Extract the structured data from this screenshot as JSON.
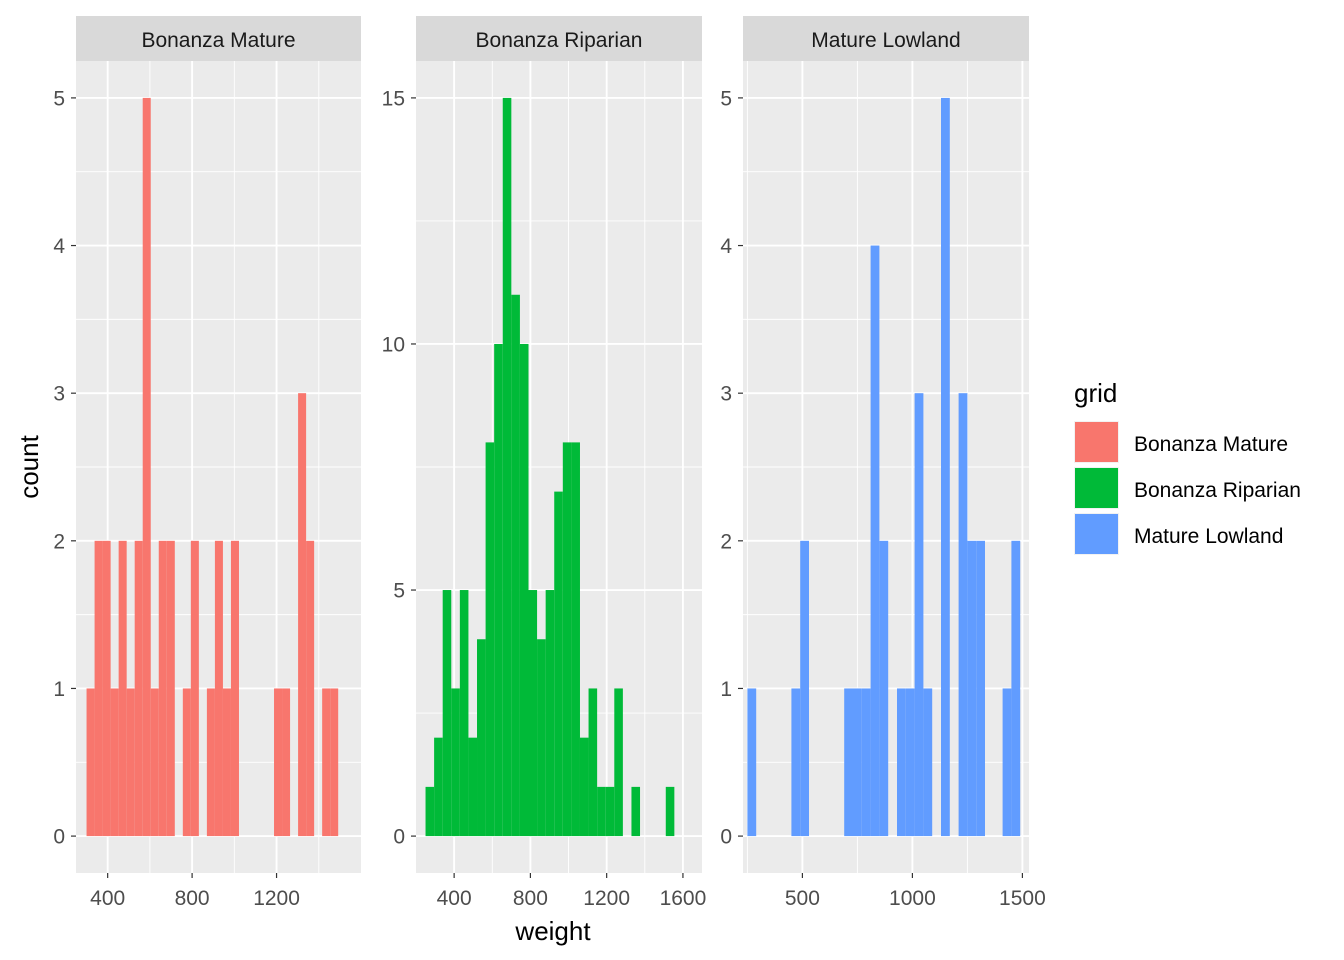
{
  "chart_data": {
    "type": "bar",
    "subtype": "faceted-histogram",
    "xlabel": "weight",
    "ylabel": "count",
    "legend": {
      "title": "grid",
      "position": "right"
    },
    "grid": true,
    "bin_width": 38,
    "colors": {
      "Bonanza Mature": "#F8766D",
      "Bonanza Riparian": "#00BA38",
      "Mature Lowland": "#619CFF"
    },
    "panels": [
      {
        "strip": "Bonanza Mature",
        "xlim": [
          250,
          1600
        ],
        "ylim": [
          -0.25,
          5.25
        ],
        "xticks": [
          400,
          800,
          1200
        ],
        "yticks": [
          0,
          1,
          2,
          3,
          4,
          5
        ],
        "bins": [
          {
            "x0": 300,
            "x1": 338,
            "count": 1
          },
          {
            "x0": 338,
            "x1": 376,
            "count": 2
          },
          {
            "x0": 376,
            "x1": 414,
            "count": 2
          },
          {
            "x0": 414,
            "x1": 452,
            "count": 1
          },
          {
            "x0": 452,
            "x1": 490,
            "count": 2
          },
          {
            "x0": 490,
            "x1": 528,
            "count": 1
          },
          {
            "x0": 528,
            "x1": 566,
            "count": 2
          },
          {
            "x0": 566,
            "x1": 604,
            "count": 5
          },
          {
            "x0": 604,
            "x1": 642,
            "count": 1
          },
          {
            "x0": 642,
            "x1": 680,
            "count": 2
          },
          {
            "x0": 680,
            "x1": 718,
            "count": 2
          },
          {
            "x0": 756,
            "x1": 794,
            "count": 1
          },
          {
            "x0": 794,
            "x1": 832,
            "count": 2
          },
          {
            "x0": 870,
            "x1": 908,
            "count": 1
          },
          {
            "x0": 908,
            "x1": 946,
            "count": 2
          },
          {
            "x0": 946,
            "x1": 984,
            "count": 1
          },
          {
            "x0": 984,
            "x1": 1022,
            "count": 2
          },
          {
            "x0": 1188,
            "x1": 1226,
            "count": 1
          },
          {
            "x0": 1226,
            "x1": 1264,
            "count": 1
          },
          {
            "x0": 1302,
            "x1": 1340,
            "count": 3
          },
          {
            "x0": 1340,
            "x1": 1378,
            "count": 2
          },
          {
            "x0": 1416,
            "x1": 1454,
            "count": 1
          },
          {
            "x0": 1454,
            "x1": 1492,
            "count": 1
          }
        ]
      },
      {
        "strip": "Bonanza Riparian",
        "xlim": [
          200,
          1700
        ],
        "ylim": [
          -0.75,
          15.75
        ],
        "xticks": [
          400,
          800,
          1200,
          1600
        ],
        "yticks": [
          0,
          5,
          10,
          15
        ],
        "bins": [
          {
            "x0": 250,
            "x1": 295,
            "count": 1
          },
          {
            "x0": 295,
            "x1": 340,
            "count": 2
          },
          {
            "x0": 340,
            "x1": 385,
            "count": 5
          },
          {
            "x0": 385,
            "x1": 430,
            "count": 3
          },
          {
            "x0": 430,
            "x1": 475,
            "count": 5
          },
          {
            "x0": 475,
            "x1": 520,
            "count": 2
          },
          {
            "x0": 520,
            "x1": 565,
            "count": 4
          },
          {
            "x0": 565,
            "x1": 610,
            "count": 8
          },
          {
            "x0": 610,
            "x1": 655,
            "count": 10
          },
          {
            "x0": 655,
            "x1": 700,
            "count": 15
          },
          {
            "x0": 700,
            "x1": 745,
            "count": 11
          },
          {
            "x0": 745,
            "x1": 790,
            "count": 10
          },
          {
            "x0": 790,
            "x1": 835,
            "count": 5
          },
          {
            "x0": 835,
            "x1": 880,
            "count": 4
          },
          {
            "x0": 880,
            "x1": 925,
            "count": 5
          },
          {
            "x0": 925,
            "x1": 970,
            "count": 7
          },
          {
            "x0": 970,
            "x1": 1015,
            "count": 8
          },
          {
            "x0": 1015,
            "x1": 1060,
            "count": 8
          },
          {
            "x0": 1060,
            "x1": 1105,
            "count": 2
          },
          {
            "x0": 1105,
            "x1": 1150,
            "count": 3
          },
          {
            "x0": 1150,
            "x1": 1195,
            "count": 1
          },
          {
            "x0": 1195,
            "x1": 1240,
            "count": 1
          },
          {
            "x0": 1240,
            "x1": 1285,
            "count": 3
          },
          {
            "x0": 1330,
            "x1": 1375,
            "count": 1
          },
          {
            "x0": 1510,
            "x1": 1555,
            "count": 1
          }
        ]
      },
      {
        "strip": "Mature Lowland",
        "xlim": [
          230,
          1530
        ],
        "ylim": [
          -0.25,
          5.25
        ],
        "xticks": [
          500,
          1000,
          1500
        ],
        "yticks": [
          0,
          1,
          2,
          3,
          4,
          5
        ],
        "bins": [
          {
            "x0": 250,
            "x1": 290,
            "count": 1
          },
          {
            "x0": 450,
            "x1": 490,
            "count": 1
          },
          {
            "x0": 490,
            "x1": 530,
            "count": 2
          },
          {
            "x0": 690,
            "x1": 730,
            "count": 1
          },
          {
            "x0": 730,
            "x1": 770,
            "count": 1
          },
          {
            "x0": 770,
            "x1": 810,
            "count": 1
          },
          {
            "x0": 810,
            "x1": 850,
            "count": 4
          },
          {
            "x0": 850,
            "x1": 890,
            "count": 2
          },
          {
            "x0": 930,
            "x1": 970,
            "count": 1
          },
          {
            "x0": 970,
            "x1": 1010,
            "count": 1
          },
          {
            "x0": 1010,
            "x1": 1050,
            "count": 3
          },
          {
            "x0": 1050,
            "x1": 1090,
            "count": 1
          },
          {
            "x0": 1130,
            "x1": 1170,
            "count": 5
          },
          {
            "x0": 1210,
            "x1": 1250,
            "count": 3
          },
          {
            "x0": 1250,
            "x1": 1290,
            "count": 2
          },
          {
            "x0": 1290,
            "x1": 1330,
            "count": 2
          },
          {
            "x0": 1410,
            "x1": 1450,
            "count": 1
          },
          {
            "x0": 1450,
            "x1": 1490,
            "count": 2
          }
        ]
      }
    ]
  }
}
